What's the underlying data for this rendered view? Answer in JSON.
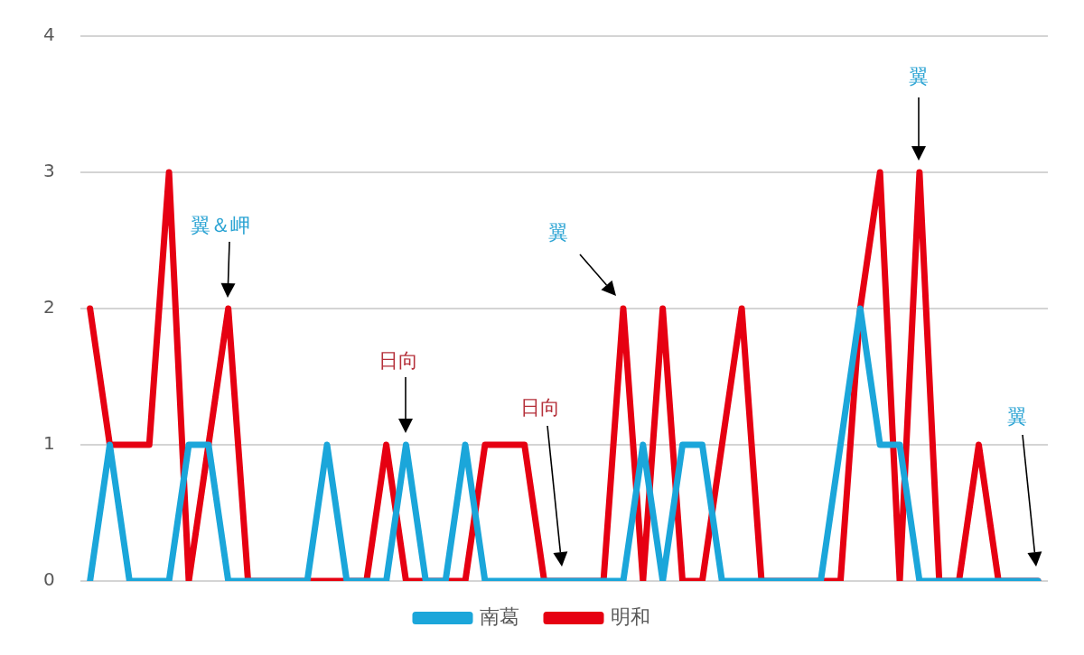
{
  "chart_data": {
    "type": "line",
    "categories": [
      null,
      null,
      null,
      null,
      null,
      null,
      null,
      null,
      null,
      null,
      null,
      null,
      null,
      null,
      null,
      null,
      null,
      null,
      null,
      null,
      null,
      null,
      null,
      null,
      null,
      null,
      null,
      null,
      null,
      null,
      null,
      null,
      null,
      null,
      null,
      null,
      null,
      null,
      null,
      null,
      null,
      null,
      null,
      null,
      null,
      null,
      null,
      null,
      null
    ],
    "series": [
      {
        "name": "南葛",
        "color": "#1ba6da",
        "values": [
          0,
          1,
          0,
          0,
          0,
          1,
          1,
          0,
          0,
          0,
          0,
          0,
          1,
          0,
          0,
          0,
          1,
          0,
          0,
          1,
          0,
          0,
          0,
          0,
          0,
          0,
          0,
          0,
          1,
          0,
          1,
          1,
          0,
          0,
          0,
          0,
          0,
          0,
          1,
          2,
          1,
          1,
          0,
          0,
          0,
          0,
          0,
          0,
          0
        ]
      },
      {
        "name": "明和",
        "color": "#e60012",
        "values": [
          2,
          1,
          1,
          1,
          3,
          0,
          1,
          2,
          0,
          0,
          0,
          0,
          0,
          0,
          0,
          1,
          0,
          0,
          0,
          0,
          1,
          1,
          1,
          0,
          0,
          0,
          0,
          2,
          0,
          2,
          0,
          0,
          1,
          2,
          0,
          0,
          0,
          0,
          0,
          2,
          3,
          0,
          3,
          0,
          0,
          1,
          0,
          0,
          0
        ]
      }
    ],
    "ylim": [
      0,
      4
    ],
    "yticks": [
      0,
      1,
      2,
      3,
      4
    ],
    "grid": "y",
    "legend": "bottom",
    "tick_labels": "y",
    "marker": "none",
    "line_style": "solid",
    "annotations": [
      "翼＆岬",
      "日向",
      "日向",
      "翼",
      "翼",
      "翼"
    ]
  }
}
